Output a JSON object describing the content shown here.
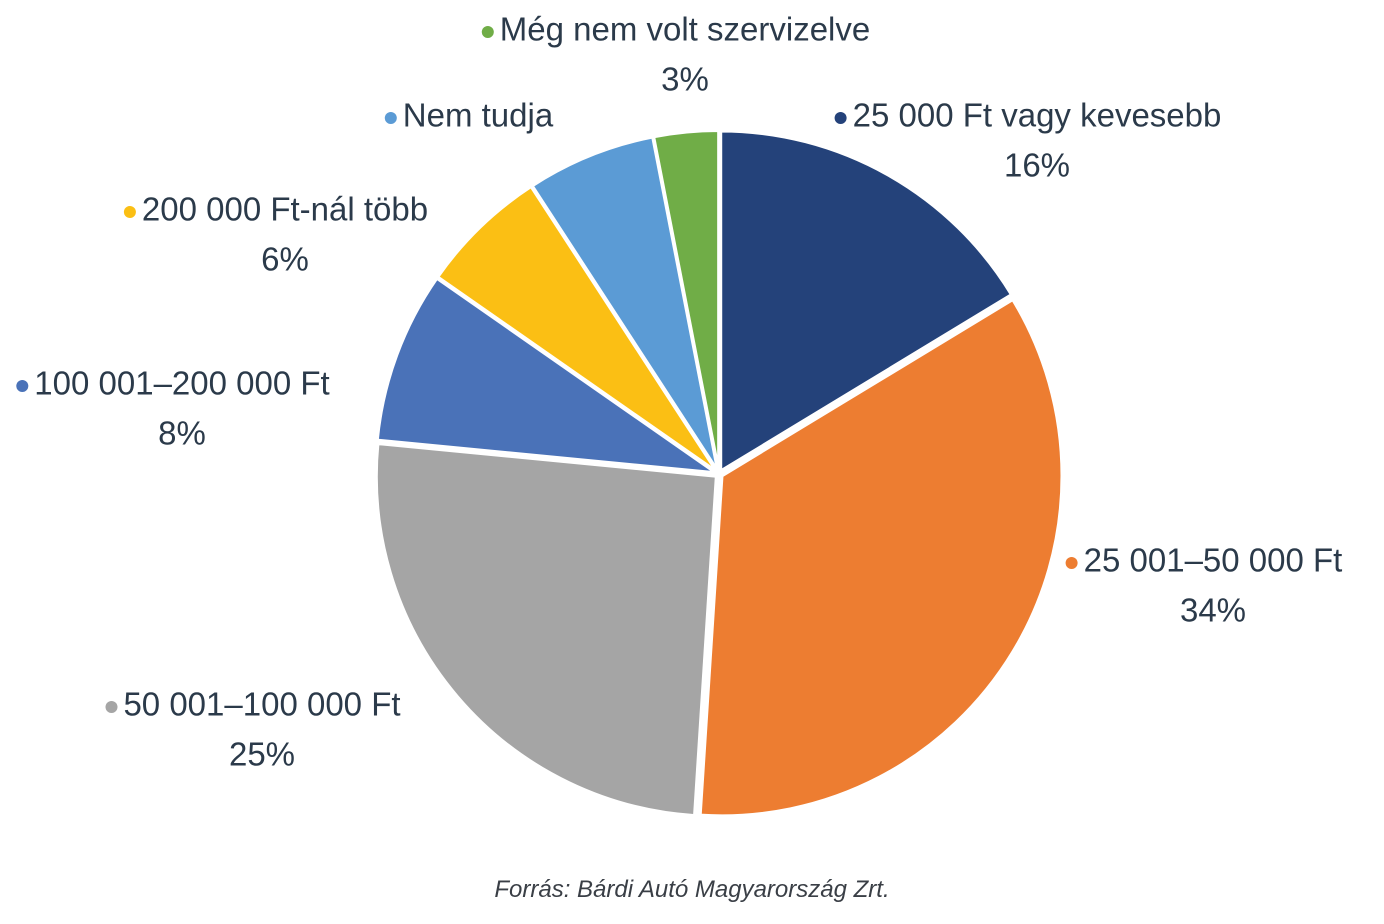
{
  "chart_data": {
    "type": "pie",
    "slices": [
      {
        "label": "25 000 Ft vagy kevesebb",
        "value": 16,
        "value_label": "16%",
        "color": "#24427a"
      },
      {
        "label": "25 001–50 000 Ft",
        "value": 34,
        "value_label": "34%",
        "color": "#ed7d31"
      },
      {
        "label": "50 001–100 000 Ft",
        "value": 25,
        "value_label": "25%",
        "color": "#a5a5a5"
      },
      {
        "label": "100 001–200 000 Ft",
        "value": 8,
        "value_label": "8%",
        "color": "#4a72b8"
      },
      {
        "label": "200 000 Ft-nál több",
        "value": 6,
        "value_label": "6%",
        "color": "#fbbf14"
      },
      {
        "label": "Nem tudja",
        "value": 6,
        "value_label": "",
        "color": "#5b9bd5"
      },
      {
        "label": "Még nem volt szervizelve",
        "value": 3,
        "value_label": "3%",
        "color": "#70ad47"
      }
    ],
    "start": "12 o'clock",
    "direction": "clockwise"
  },
  "source": "Forrás: Bárdi Autó Magyarország Zrt."
}
